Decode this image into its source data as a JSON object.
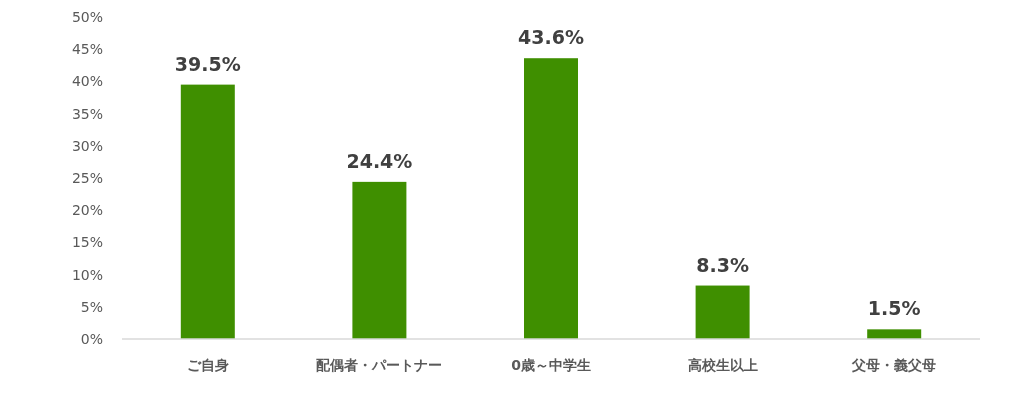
{
  "chart_data": {
    "type": "bar",
    "categories": [
      "ご自身",
      "配偶者・パートナー",
      "0歳～中学生",
      "高校生以上",
      "父母・義父母"
    ],
    "values": [
      39.5,
      24.4,
      43.6,
      8.3,
      1.5
    ],
    "value_labels": [
      "39.5%",
      "24.4%",
      "43.6%",
      "8.3%",
      "1.5%"
    ],
    "color": "#3f8f00",
    "ylim": [
      0,
      50
    ],
    "yticks": [
      {
        "value": 0,
        "label": "0%"
      },
      {
        "value": 5,
        "label": "5%"
      },
      {
        "value": 10,
        "label": "10%"
      },
      {
        "value": 15,
        "label": "15%"
      },
      {
        "value": 20,
        "label": "20%"
      },
      {
        "value": 25,
        "label": "25%"
      },
      {
        "value": 30,
        "label": "30%"
      },
      {
        "value": 35,
        "label": "35%"
      },
      {
        "value": 40,
        "label": "40%"
      },
      {
        "value": 45,
        "label": "45%"
      },
      {
        "value": 50,
        "label": "50%"
      }
    ],
    "grid": false
  }
}
